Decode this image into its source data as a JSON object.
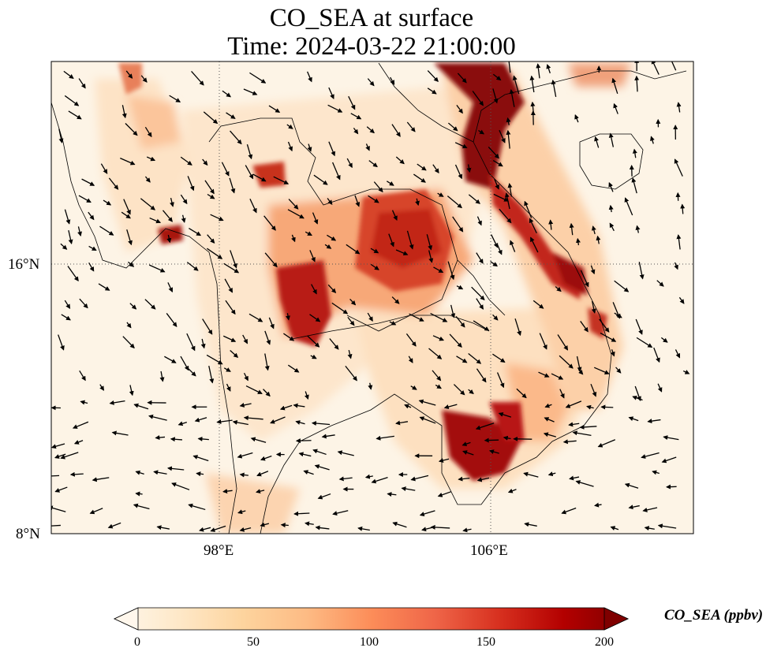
{
  "title": {
    "line1": "CO_SEA at surface",
    "line2": "Time: 2024-03-22 21:00:00"
  },
  "map": {
    "lon_range": [
      92.7,
      111.6
    ],
    "lat_range": [
      8,
      22.1
    ],
    "lon_ticks": [
      {
        "value": 98,
        "label": "98°E"
      },
      {
        "value": 106,
        "label": "106°E"
      }
    ],
    "lat_ticks": [
      {
        "value": 16,
        "label": "16°N"
      },
      {
        "value": 8,
        "label": "8°N"
      }
    ],
    "gridlines": "dotted",
    "background_color": "#fdf4e6",
    "coastline_color": "#000000"
  },
  "colorbar": {
    "label": "CO_SEA (ppbv)",
    "min": 0,
    "max": 200,
    "ticks": [
      0,
      50,
      100,
      150,
      200
    ],
    "extend": "both",
    "colormap": "OrRd",
    "colors": [
      "#fff7ec",
      "#fee8c8",
      "#fdd49e",
      "#fdbb84",
      "#fc8d59",
      "#ef6548",
      "#d7301f",
      "#b30000",
      "#7f0000"
    ]
  }
}
